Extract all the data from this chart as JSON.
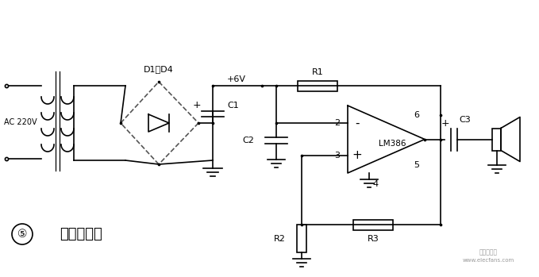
{
  "bg_color": "#ffffff",
  "line_color": "#000000",
  "label_AC": "AC 220V",
  "label_D1D4": "D1～D4",
  "label_6V": "+6V",
  "label_R1": "R1",
  "label_R2": "R2",
  "label_R3": "R3",
  "label_C1": "C1",
  "label_C2": "C2",
  "label_C3": "C3",
  "label_LM386": "LM386",
  "label_pin2": "2",
  "label_pin3": "3",
  "label_pin4": "4",
  "label_pin5": "5",
  "label_pin6": "6",
  "label_bottom_num": "⑤",
  "label_bottom_text": "方波振荡器",
  "watermark_line1": "电子发烧友",
  "watermark_line2": "www.elecfans.com"
}
